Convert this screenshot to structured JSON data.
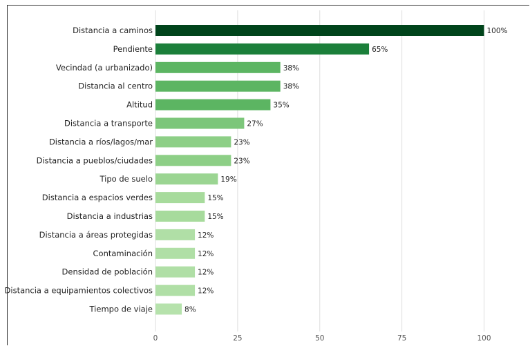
{
  "chart_data": {
    "type": "bar",
    "orientation": "horizontal",
    "categories": [
      "Distancia a caminos",
      "Pendiente",
      "Vecindad (a urbanizado)",
      "Distancia al centro",
      "Altitud",
      "Distancia a transporte",
      "Distancia a ríos/lagos/mar",
      "Distancia a pueblos/ciudades",
      "Tipo de suelo",
      "Distancia a espacios verdes",
      "Distancia a industrias",
      "Distancia a áreas protegidas",
      "Contaminación",
      "Densidad de población",
      "Distancia a equipamientos colectivos",
      "Tiempo de viaje"
    ],
    "values": [
      100,
      65,
      38,
      38,
      35,
      27,
      23,
      23,
      19,
      15,
      15,
      12,
      12,
      12,
      12,
      8
    ],
    "value_labels": [
      "100%",
      "65%",
      "38%",
      "38%",
      "35%",
      "27%",
      "23%",
      "23%",
      "19%",
      "15%",
      "15%",
      "12%",
      "12%",
      "12%",
      "12%",
      "8%"
    ],
    "colors": [
      "#00441b",
      "#1b7f3a",
      "#5cb562",
      "#5cb562",
      "#5cb562",
      "#7cc67a",
      "#8dcf86",
      "#8dcf86",
      "#9bd592",
      "#a7db9c",
      "#a7db9c",
      "#b0dfa6",
      "#b0dfa6",
      "#b0dfa6",
      "#b0dfa6",
      "#b6e2ac"
    ],
    "xticks": [
      0,
      25,
      50,
      75,
      100
    ],
    "xtick_labels": [
      "0",
      "25",
      "50",
      "75",
      "100"
    ],
    "xlim": [
      0,
      114
    ],
    "grid": "vertical",
    "title": "",
    "xlabel": "",
    "ylabel": ""
  }
}
